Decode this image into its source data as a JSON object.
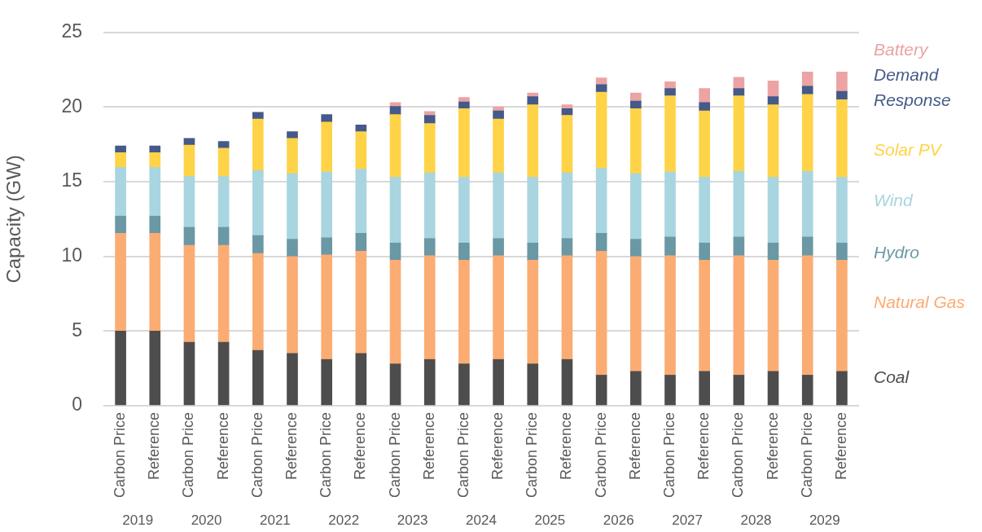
{
  "chart_data": {
    "type": "bar",
    "ylabel": "Capacity (GW)",
    "stacked": true,
    "grid": "y",
    "legend": "right",
    "categories": [
      "Carbon Price",
      "Reference",
      "Carbon Price",
      "Reference",
      "Carbon Price",
      "Reference",
      "Carbon Price",
      "Reference",
      "Carbon Price",
      "Reference",
      "Carbon Price",
      "Reference",
      "Carbon Price",
      "Reference",
      "Carbon Price",
      "Reference",
      "Carbon Price",
      "Reference",
      "Carbon Price",
      "Reference",
      "Carbon Price",
      "Reference"
    ],
    "annotations": [
      "2019",
      "2020",
      "2021",
      "2022",
      "2023",
      "2024",
      "2025",
      "2026",
      "2027",
      "2028",
      "2029"
    ],
    "ylim": [
      0,
      25
    ],
    "yticks": [
      0,
      5,
      10,
      15,
      20,
      25
    ],
    "series": [
      {
        "name": "Coal",
        "color": "#4d4d4d",
        "values": [
          5.0,
          5.0,
          4.25,
          4.25,
          3.7,
          3.5,
          3.1,
          3.5,
          2.8,
          3.1,
          2.8,
          3.1,
          2.8,
          3.1,
          2.05,
          2.3,
          2.05,
          2.3,
          2.05,
          2.3,
          2.05,
          2.3
        ]
      },
      {
        "name": "Natural Gas",
        "color": "#fbac73",
        "values": [
          6.55,
          6.55,
          6.5,
          6.5,
          6.5,
          6.5,
          7.0,
          6.85,
          6.95,
          6.95,
          6.95,
          6.95,
          6.95,
          6.95,
          8.3,
          7.7,
          8.0,
          7.45,
          8.0,
          7.45,
          8.0,
          7.45
        ]
      },
      {
        "name": "Hydro",
        "color": "#6a98a4",
        "values": [
          1.15,
          1.15,
          1.2,
          1.2,
          1.2,
          1.15,
          1.15,
          1.2,
          1.15,
          1.15,
          1.15,
          1.15,
          1.15,
          1.15,
          1.2,
          1.15,
          1.25,
          1.15,
          1.25,
          1.15,
          1.25,
          1.15
        ]
      },
      {
        "name": "Wind",
        "color": "#a8d5e0",
        "values": [
          3.25,
          3.25,
          3.4,
          3.4,
          4.35,
          4.4,
          4.4,
          4.3,
          4.4,
          4.4,
          4.4,
          4.4,
          4.4,
          4.4,
          4.35,
          4.4,
          4.35,
          4.4,
          4.4,
          4.4,
          4.4,
          4.4
        ]
      },
      {
        "name": "Solar PV",
        "color": "#ffd347",
        "values": [
          1.0,
          1.0,
          2.1,
          1.9,
          3.45,
          2.35,
          3.35,
          2.5,
          4.2,
          3.3,
          4.6,
          3.6,
          4.85,
          3.85,
          5.1,
          4.35,
          5.1,
          4.45,
          5.05,
          4.85,
          5.15,
          5.2
        ]
      },
      {
        "name": "Demand Response",
        "color": "#45598a",
        "values": [
          0.45,
          0.45,
          0.45,
          0.45,
          0.45,
          0.45,
          0.5,
          0.45,
          0.55,
          0.55,
          0.45,
          0.55,
          0.55,
          0.45,
          0.5,
          0.5,
          0.5,
          0.55,
          0.5,
          0.55,
          0.55,
          0.55
        ]
      },
      {
        "name": "Battery",
        "color": "#eba3a3",
        "values": [
          null,
          null,
          null,
          null,
          null,
          null,
          null,
          null,
          0.25,
          0.25,
          0.3,
          0.25,
          0.25,
          0.25,
          0.45,
          0.55,
          0.45,
          0.95,
          0.75,
          1.05,
          0.95,
          1.3
        ]
      }
    ]
  }
}
